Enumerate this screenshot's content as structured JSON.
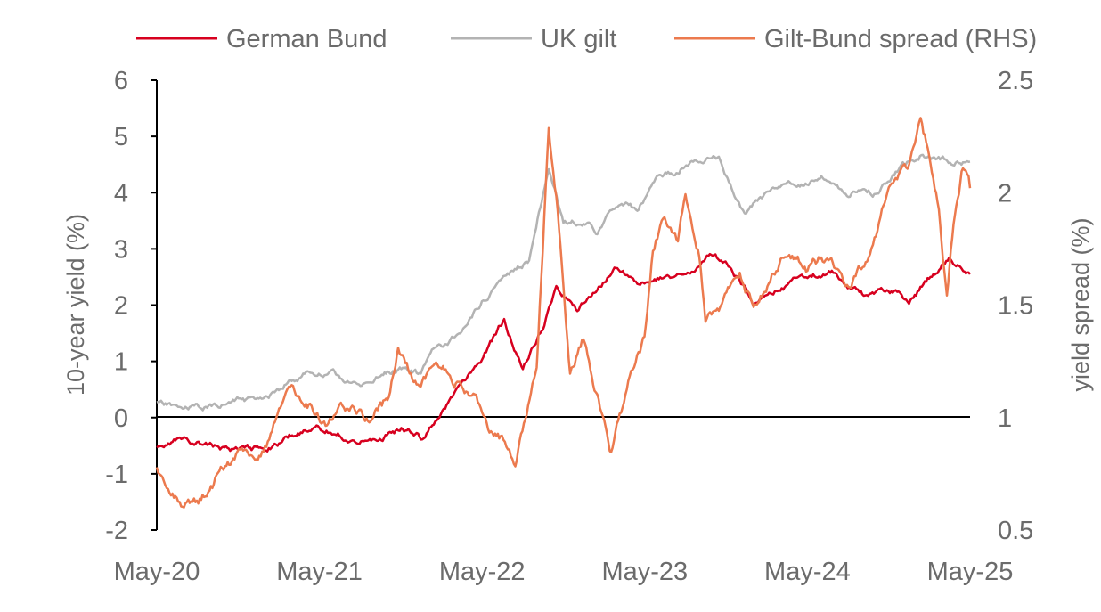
{
  "chart_data": {
    "type": "line",
    "x_axis": {
      "type": "date",
      "range": [
        "2020-05-01",
        "2025-05-01"
      ],
      "tick_labels": [
        "May-20",
        "May-21",
        "May-22",
        "May-23",
        "May-24",
        "May-25"
      ]
    },
    "y_left": {
      "label": "10-year yield (%)",
      "range": [
        -2,
        6
      ],
      "ticks": [
        "-2",
        "-1",
        "0",
        "1",
        "2",
        "3",
        "4",
        "5",
        "6"
      ]
    },
    "y_right": {
      "label": "yield spread (%)",
      "range": [
        0.5,
        2.5
      ],
      "ticks": [
        "0.5",
        "1",
        "1.5",
        "2",
        "2.5"
      ]
    },
    "zero_line": true,
    "grid": false,
    "legend": {
      "placement": "top",
      "entries": [
        {
          "name": "German Bund",
          "color": "#d7001f"
        },
        {
          "name": "UK gilt",
          "color": "#b3b3b3"
        },
        {
          "name": "Gilt-Bund spread (RHS)",
          "color": "#ec7a4e"
        }
      ]
    },
    "series": [
      {
        "name": "UK gilt",
        "axis": "left",
        "color": "#b3b3b3",
        "points": [
          [
            "2020-05-01",
            0.25
          ],
          [
            "2020-07-01",
            0.15
          ],
          [
            "2020-09-01",
            0.2
          ],
          [
            "2020-11-01",
            0.3
          ],
          [
            "2021-01-01",
            0.3
          ],
          [
            "2021-02-15",
            0.6
          ],
          [
            "2021-04-01",
            0.8
          ],
          [
            "2021-06-01",
            0.75
          ],
          [
            "2021-08-01",
            0.55
          ],
          [
            "2021-09-15",
            0.75
          ],
          [
            "2021-11-01",
            0.9
          ],
          [
            "2021-12-15",
            0.75
          ],
          [
            "2022-01-15",
            1.2
          ],
          [
            "2022-03-01",
            1.4
          ],
          [
            "2022-04-15",
            1.9
          ],
          [
            "2022-06-15",
            2.5
          ],
          [
            "2022-08-15",
            2.8
          ],
          [
            "2022-09-28",
            4.5
          ],
          [
            "2022-10-31",
            3.5
          ],
          [
            "2022-12-15",
            3.5
          ],
          [
            "2023-01-15",
            3.3
          ],
          [
            "2023-03-01",
            3.8
          ],
          [
            "2023-04-15",
            3.7
          ],
          [
            "2023-06-01",
            4.3
          ],
          [
            "2023-07-15",
            4.4
          ],
          [
            "2023-08-15",
            4.6
          ],
          [
            "2023-10-15",
            4.6
          ],
          [
            "2023-12-15",
            3.6
          ],
          [
            "2024-02-01",
            4.0
          ],
          [
            "2024-04-01",
            4.1
          ],
          [
            "2024-06-01",
            4.3
          ],
          [
            "2024-08-01",
            4.0
          ],
          [
            "2024-10-01",
            4.0
          ],
          [
            "2024-12-01",
            4.5
          ],
          [
            "2025-01-15",
            4.7
          ],
          [
            "2025-03-01",
            4.6
          ],
          [
            "2025-05-01",
            4.55
          ]
        ]
      },
      {
        "name": "German Bund",
        "axis": "left",
        "color": "#d7001f",
        "points": [
          [
            "2020-05-01",
            -0.55
          ],
          [
            "2020-06-15",
            -0.4
          ],
          [
            "2020-09-01",
            -0.5
          ],
          [
            "2020-11-01",
            -0.6
          ],
          [
            "2021-01-01",
            -0.55
          ],
          [
            "2021-03-01",
            -0.3
          ],
          [
            "2021-05-01",
            -0.2
          ],
          [
            "2021-07-01",
            -0.35
          ],
          [
            "2021-09-01",
            -0.45
          ],
          [
            "2021-11-01",
            -0.2
          ],
          [
            "2021-12-15",
            -0.35
          ],
          [
            "2022-02-01",
            0.1
          ],
          [
            "2022-03-15",
            0.5
          ],
          [
            "2022-05-01",
            1.0
          ],
          [
            "2022-06-20",
            1.75
          ],
          [
            "2022-08-01",
            0.85
          ],
          [
            "2022-09-15",
            1.6
          ],
          [
            "2022-10-15",
            2.3
          ],
          [
            "2022-12-01",
            1.9
          ],
          [
            "2023-01-15",
            2.3
          ],
          [
            "2023-03-01",
            2.7
          ],
          [
            "2023-04-15",
            2.3
          ],
          [
            "2023-06-15",
            2.5
          ],
          [
            "2023-08-15",
            2.6
          ],
          [
            "2023-10-01",
            2.9
          ],
          [
            "2023-11-15",
            2.6
          ],
          [
            "2024-01-01",
            2.0
          ],
          [
            "2024-03-01",
            2.3
          ],
          [
            "2024-05-01",
            2.5
          ],
          [
            "2024-07-01",
            2.6
          ],
          [
            "2024-09-01",
            2.2
          ],
          [
            "2024-11-15",
            2.2
          ],
          [
            "2024-12-15",
            2.05
          ],
          [
            "2025-02-01",
            2.5
          ],
          [
            "2025-03-15",
            2.85
          ],
          [
            "2025-05-01",
            2.55
          ]
        ]
      },
      {
        "name": "Gilt-Bund spread (RHS)",
        "axis": "right",
        "color": "#ec7a4e",
        "points": [
          [
            "2020-05-01",
            0.77
          ],
          [
            "2020-05-20",
            0.66
          ],
          [
            "2020-07-01",
            0.6
          ],
          [
            "2020-08-15",
            0.65
          ],
          [
            "2020-10-01",
            0.78
          ],
          [
            "2020-11-01",
            0.85
          ],
          [
            "2020-12-01",
            0.8
          ],
          [
            "2021-01-15",
            0.93
          ],
          [
            "2021-02-15",
            1.12
          ],
          [
            "2021-04-01",
            1.08
          ],
          [
            "2021-05-15",
            0.99
          ],
          [
            "2021-07-01",
            1.05
          ],
          [
            "2021-08-15",
            0.98
          ],
          [
            "2021-10-01",
            1.08
          ],
          [
            "2021-10-25",
            1.3
          ],
          [
            "2021-12-15",
            1.12
          ],
          [
            "2022-01-15",
            1.25
          ],
          [
            "2022-02-15",
            1.2
          ],
          [
            "2022-04-15",
            1.1
          ],
          [
            "2022-05-15",
            0.95
          ],
          [
            "2022-06-15",
            0.9
          ],
          [
            "2022-07-15",
            0.8
          ],
          [
            "2022-09-01",
            1.2
          ],
          [
            "2022-09-28",
            2.3
          ],
          [
            "2022-10-15",
            2.0
          ],
          [
            "2022-11-15",
            1.2
          ],
          [
            "2022-12-15",
            1.35
          ],
          [
            "2023-01-15",
            1.1
          ],
          [
            "2023-02-15",
            0.85
          ],
          [
            "2023-04-01",
            1.2
          ],
          [
            "2023-05-01",
            1.35
          ],
          [
            "2023-05-20",
            1.75
          ],
          [
            "2023-06-15",
            1.9
          ],
          [
            "2023-07-15",
            1.8
          ],
          [
            "2023-08-01",
            2.0
          ],
          [
            "2023-09-01",
            1.75
          ],
          [
            "2023-09-15",
            1.45
          ],
          [
            "2023-10-15",
            1.5
          ],
          [
            "2023-11-01",
            1.55
          ],
          [
            "2023-12-01",
            1.65
          ],
          [
            "2024-01-01",
            1.5
          ],
          [
            "2024-02-01",
            1.6
          ],
          [
            "2024-03-15",
            1.75
          ],
          [
            "2024-05-01",
            1.65
          ],
          [
            "2024-06-01",
            1.7
          ],
          [
            "2024-08-01",
            1.6
          ],
          [
            "2024-09-15",
            1.7
          ],
          [
            "2024-10-15",
            1.9
          ],
          [
            "2024-11-15",
            2.05
          ],
          [
            "2024-12-15",
            2.1
          ],
          [
            "2025-01-10",
            2.3
          ],
          [
            "2025-02-01",
            2.15
          ],
          [
            "2025-02-20",
            1.95
          ],
          [
            "2025-03-10",
            1.55
          ],
          [
            "2025-03-25",
            1.85
          ],
          [
            "2025-04-15",
            2.1
          ],
          [
            "2025-05-01",
            2.02
          ]
        ]
      }
    ]
  }
}
